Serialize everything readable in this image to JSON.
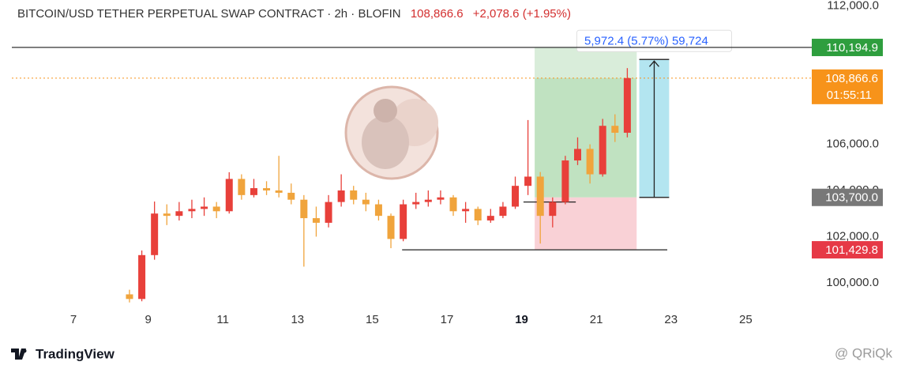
{
  "chart_data": {
    "type": "candlestick",
    "title": "BITCOIN/USD TETHER PERPETUAL SWAP CONTRACT · 2h · BLOFIN",
    "last_price": "108,866.6",
    "change": "+2,078.6 (+1.95%)",
    "x": [
      8.5,
      8.83,
      9.17,
      9.5,
      9.83,
      10.17,
      10.5,
      10.83,
      11.17,
      11.5,
      11.83,
      12.17,
      12.5,
      12.83,
      13.17,
      13.5,
      13.83,
      14.17,
      14.5,
      14.83,
      15.17,
      15.5,
      15.83,
      16.17,
      16.5,
      16.83,
      17.17,
      17.5,
      17.83,
      18.17,
      18.5,
      18.83,
      19.17,
      19.5,
      19.83,
      20.17,
      20.5,
      20.83,
      21.17,
      21.5,
      21.83
    ],
    "open": [
      99500,
      99300,
      101200,
      103000,
      102900,
      103100,
      103200,
      103300,
      103100,
      104500,
      103800,
      104100,
      104000,
      103900,
      103600,
      102800,
      102600,
      103500,
      104000,
      103600,
      103400,
      102900,
      101900,
      103400,
      103500,
      103600,
      103700,
      103100,
      103200,
      102700,
      102900,
      103300,
      104200,
      104600,
      102900,
      103500,
      105300,
      105800,
      104700,
      106800,
      106500
    ],
    "high": [
      99700,
      101400,
      103520,
      103400,
      103500,
      103600,
      103700,
      103500,
      104790,
      104700,
      104500,
      104400,
      105500,
      104300,
      103800,
      103300,
      103800,
      104700,
      104200,
      103900,
      103600,
      103000,
      103600,
      103900,
      104000,
      104000,
      103800,
      103500,
      103300,
      103200,
      103500,
      104600,
      107050,
      104800,
      103700,
      105500,
      106300,
      106000,
      107100,
      107300,
      109300
    ],
    "low": [
      99150,
      99200,
      101000,
      102500,
      102700,
      102800,
      102900,
      102800,
      103000,
      103600,
      103700,
      103800,
      103700,
      103400,
      100700,
      102000,
      102400,
      103300,
      103400,
      103100,
      102700,
      101500,
      101800,
      103200,
      103300,
      103400,
      102900,
      102600,
      102500,
      102600,
      102800,
      103200,
      103800,
      101700,
      102400,
      103400,
      105100,
      104300,
      104600,
      106100,
      106300
    ],
    "close": [
      99300,
      101200,
      103000,
      102900,
      103100,
      103200,
      103300,
      103100,
      104500,
      103800,
      104100,
      104000,
      103900,
      103600,
      102800,
      102600,
      103500,
      104000,
      103600,
      103400,
      102900,
      101900,
      103400,
      103500,
      103600,
      103700,
      103100,
      103200,
      102700,
      102900,
      103300,
      104200,
      104600,
      102900,
      103500,
      105300,
      105800,
      104700,
      106800,
      106500,
      108866.6
    ],
    "up_color": "#e8403a",
    "down_color": "#f0a43c",
    "xlim": [
      5.35,
      26.6
    ],
    "xticks": [
      7,
      9,
      11,
      13,
      15,
      17,
      19,
      21,
      23,
      25
    ],
    "xtick_bold": 19,
    "ylim": [
      98900,
      112250
    ],
    "yticks": [
      {
        "value": 100000,
        "label": "100,000.0"
      },
      {
        "value": 102000,
        "label": "102,000.0"
      },
      {
        "value": 104000,
        "label": "104,000.0"
      },
      {
        "value": 106000,
        "label": "106,000.0"
      },
      {
        "value": 112000,
        "label": "112,000.0"
      }
    ],
    "price_lines": [
      {
        "value": 110194.9,
        "label": "110,194.9",
        "color": "#2e9e3e",
        "line_color": "#333333"
      },
      {
        "value": 108866.6,
        "label": "108,866.6",
        "sublabel": "01:55:11",
        "color": "#f7931a",
        "line_color": "#f7931a"
      },
      {
        "value": 103700,
        "label": "103,700.0",
        "color": "#787878"
      },
      {
        "value": 101429.8,
        "label": "101,429.8",
        "color": "#e63946"
      }
    ],
    "position": {
      "x": [
        19.35,
        22.08
      ],
      "entry": 103700,
      "target": 110194.9,
      "stop": 101429.8
    },
    "measure": {
      "x": [
        22.15,
        22.95
      ],
      "from": 103700,
      "to": 109672.4,
      "label": "5,972.4 (5.77%) 59,724"
    },
    "segments": [
      {
        "x": [
          15.8,
          22.9
        ],
        "y": 101429.8
      },
      {
        "x": [
          19.05,
          20.45
        ],
        "y": 103500
      }
    ]
  },
  "branding": {
    "logo": "TradingView",
    "watermark": "@ QRiQk"
  }
}
